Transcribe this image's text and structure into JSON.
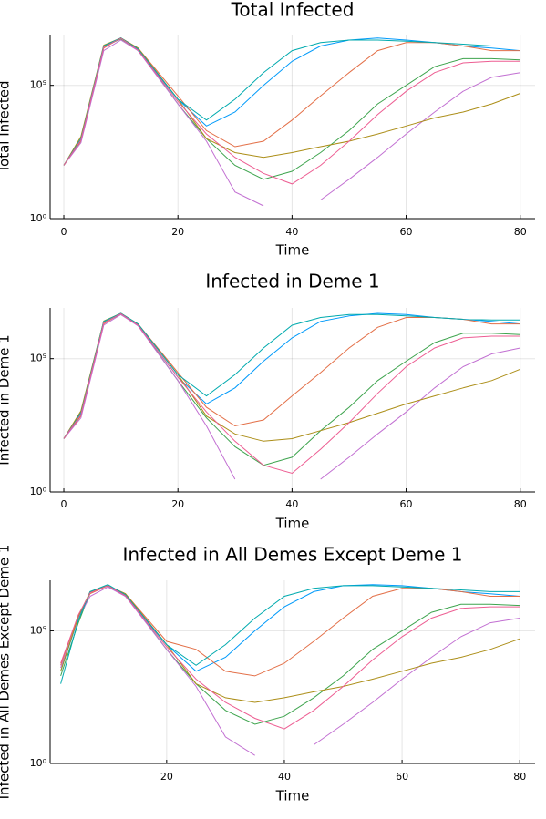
{
  "chart_data": [
    {
      "type": "line",
      "title": "Total Infected",
      "xlabel": "Time",
      "ylabel": "Total Infected",
      "log_y": true,
      "grid": true,
      "xlim": [
        -2.4,
        82.6
      ],
      "xticks": [
        0,
        20,
        40,
        60,
        80
      ],
      "ylim": [
        1,
        8000000
      ],
      "yticks": [
        {
          "value": 1,
          "label": "10⁰"
        },
        {
          "value": 100000,
          "label": "10⁵"
        }
      ],
      "x": [
        0,
        3,
        7,
        10,
        13,
        20,
        25,
        30,
        35,
        40,
        45,
        50,
        55,
        60,
        65,
        70,
        75,
        80
      ],
      "series": [
        {
          "color": "#009afa",
          "values": [
            100,
            1000,
            3000000,
            6000000,
            2000000,
            30000,
            3000,
            10000,
            100000,
            800000,
            3000000,
            5000000,
            6000000,
            5000000,
            4000000,
            3000000,
            2500000,
            2000000
          ]
        },
        {
          "color": "#e36f47",
          "values": [
            100,
            800,
            2500000,
            6000000,
            2500000,
            40000,
            2000,
            500,
            800,
            5000,
            40000,
            300000,
            2000000,
            4000000,
            4000000,
            3000000,
            2000000,
            2000000
          ]
        },
        {
          "color": "#3ea44e",
          "values": [
            100,
            900,
            2800000,
            5500000,
            2200000,
            20000,
            1000,
            100,
            30,
            60,
            300,
            2000,
            20000,
            100000,
            500000,
            1000000,
            1000000,
            900000
          ]
        },
        {
          "color": "#c270d2",
          "values": [
            100,
            700,
            2000000,
            5000000,
            2000000,
            20000,
            800,
            10,
            3,
            null,
            5,
            30,
            200,
            1500,
            10000,
            60000,
            200000,
            300000
          ]
        },
        {
          "color": "#ac8e18",
          "values": [
            100,
            1200,
            3200000,
            6000000,
            2500000,
            30000,
            1000,
            300,
            200,
            300,
            500,
            800,
            1500,
            3000,
            6000,
            10000,
            20000,
            50000
          ]
        },
        {
          "color": "#00aaae",
          "values": [
            100,
            1000,
            3000000,
            6000000,
            2300000,
            30000,
            5000,
            30000,
            300000,
            2000000,
            4000000,
            5000000,
            5000000,
            4500000,
            4000000,
            3500000,
            3000000,
            3000000
          ]
        },
        {
          "color": "#ed5d92",
          "values": [
            100,
            900,
            2700000,
            5800000,
            2100000,
            25000,
            1500,
            200,
            50,
            20,
            100,
            800,
            8000,
            60000,
            300000,
            700000,
            800000,
            800000
          ]
        }
      ]
    },
    {
      "type": "line",
      "title": "Infected in Deme 1",
      "xlabel": "Time",
      "ylabel": "Infected in Deme 1",
      "log_y": true,
      "grid": true,
      "xlim": [
        -2.4,
        82.6
      ],
      "xticks": [
        0,
        20,
        40,
        60,
        80
      ],
      "ylim": [
        1,
        8000000
      ],
      "yticks": [
        {
          "value": 1,
          "label": "10⁰"
        },
        {
          "value": 100000,
          "label": "10⁵"
        }
      ],
      "x": [
        0,
        3,
        7,
        10,
        13,
        20,
        25,
        30,
        35,
        40,
        45,
        50,
        55,
        60,
        65,
        70,
        75,
        80
      ],
      "series": [
        {
          "color": "#009afa",
          "values": [
            100,
            1000,
            2500000,
            5000000,
            1800000,
            20000,
            2000,
            8000,
            80000,
            600000,
            2500000,
            4000000,
            5000000,
            4500000,
            3500000,
            3000000,
            2500000,
            2000000
          ]
        },
        {
          "color": "#e36f47",
          "values": [
            100,
            700,
            2000000,
            5000000,
            2000000,
            30000,
            1500,
            300,
            500,
            4000,
            30000,
            250000,
            1500000,
            3500000,
            3500000,
            3000000,
            2000000,
            2000000
          ]
        },
        {
          "color": "#3ea44e",
          "values": [
            100,
            800,
            2300000,
            4500000,
            1800000,
            15000,
            600,
            50,
            10,
            20,
            200,
            1500,
            15000,
            80000,
            400000,
            900000,
            900000,
            800000
          ]
        },
        {
          "color": "#c270d2",
          "values": [
            100,
            600,
            1800000,
            4500000,
            1700000,
            15000,
            300,
            3,
            null,
            null,
            3,
            20,
            150,
            1000,
            8000,
            50000,
            150000,
            250000
          ]
        },
        {
          "color": "#ac8e18",
          "values": [
            100,
            1100,
            2600000,
            5000000,
            2000000,
            25000,
            700,
            150,
            80,
            100,
            200,
            400,
            900,
            2000,
            4000,
            8000,
            15000,
            40000
          ]
        },
        {
          "color": "#00aaae",
          "values": [
            100,
            900,
            2500000,
            5000000,
            2000000,
            25000,
            4000,
            25000,
            250000,
            1800000,
            3500000,
            4500000,
            4500000,
            4000000,
            3500000,
            3000000,
            2800000,
            2800000
          ]
        },
        {
          "color": "#ed5d92",
          "values": [
            100,
            800,
            2200000,
            4800000,
            1800000,
            20000,
            1000,
            80,
            10,
            5,
            40,
            400,
            5000,
            50000,
            250000,
            600000,
            700000,
            700000
          ]
        }
      ]
    },
    {
      "type": "line",
      "title": "Infected in All Demes Except Deme 1",
      "xlabel": "Time",
      "ylabel": "Infected in All Demes Except Deme 1",
      "log_y": true,
      "grid": true,
      "xlim": [
        0.2,
        82.6
      ],
      "xticks": [
        20,
        40,
        60,
        80
      ],
      "ylim": [
        1,
        8000000
      ],
      "yticks": [
        {
          "value": 1,
          "label": "10⁰"
        },
        {
          "value": 100000,
          "label": "10⁵"
        }
      ],
      "x": [
        2,
        5,
        7,
        10,
        13,
        20,
        25,
        30,
        35,
        40,
        45,
        50,
        55,
        60,
        65,
        70,
        75,
        80
      ],
      "series": [
        {
          "color": "#009afa",
          "values": [
            3000,
            300000,
            3000000,
            5000000,
            2000000,
            30000,
            3000,
            10000,
            100000,
            800000,
            3000000,
            5000000,
            5500000,
            5000000,
            4000000,
            3000000,
            2500000,
            2000000
          ]
        },
        {
          "color": "#e36f47",
          "values": [
            5000,
            400000,
            2500000,
            5000000,
            2500000,
            40000,
            20000,
            3000,
            2000,
            6000,
            40000,
            300000,
            2000000,
            4000000,
            4000000,
            3000000,
            2000000,
            2000000
          ]
        },
        {
          "color": "#3ea44e",
          "values": [
            2000,
            200000,
            2800000,
            5000000,
            2200000,
            20000,
            1000,
            100,
            30,
            60,
            300,
            2000,
            20000,
            100000,
            500000,
            1000000,
            1000000,
            900000
          ]
        },
        {
          "color": "#c270d2",
          "values": [
            4000,
            300000,
            2000000,
            4500000,
            2000000,
            20000,
            800,
            10,
            2,
            null,
            5,
            30,
            200,
            1500,
            10000,
            60000,
            200000,
            300000
          ]
        },
        {
          "color": "#ac8e18",
          "values": [
            3000,
            350000,
            3000000,
            5000000,
            2500000,
            30000,
            1000,
            300,
            200,
            300,
            500,
            800,
            1500,
            3000,
            6000,
            10000,
            20000,
            50000
          ]
        },
        {
          "color": "#00aaae",
          "values": [
            1000,
            250000,
            3000000,
            5500000,
            2300000,
            30000,
            5000,
            30000,
            300000,
            2000000,
            4000000,
            5000000,
            5000000,
            4500000,
            4000000,
            3500000,
            3000000,
            3000000
          ]
        },
        {
          "color": "#ed5d92",
          "values": [
            6000,
            400000,
            2700000,
            5000000,
            2100000,
            25000,
            1500,
            200,
            50,
            20,
            100,
            800,
            8000,
            60000,
            300000,
            700000,
            800000,
            800000
          ]
        }
      ]
    }
  ]
}
